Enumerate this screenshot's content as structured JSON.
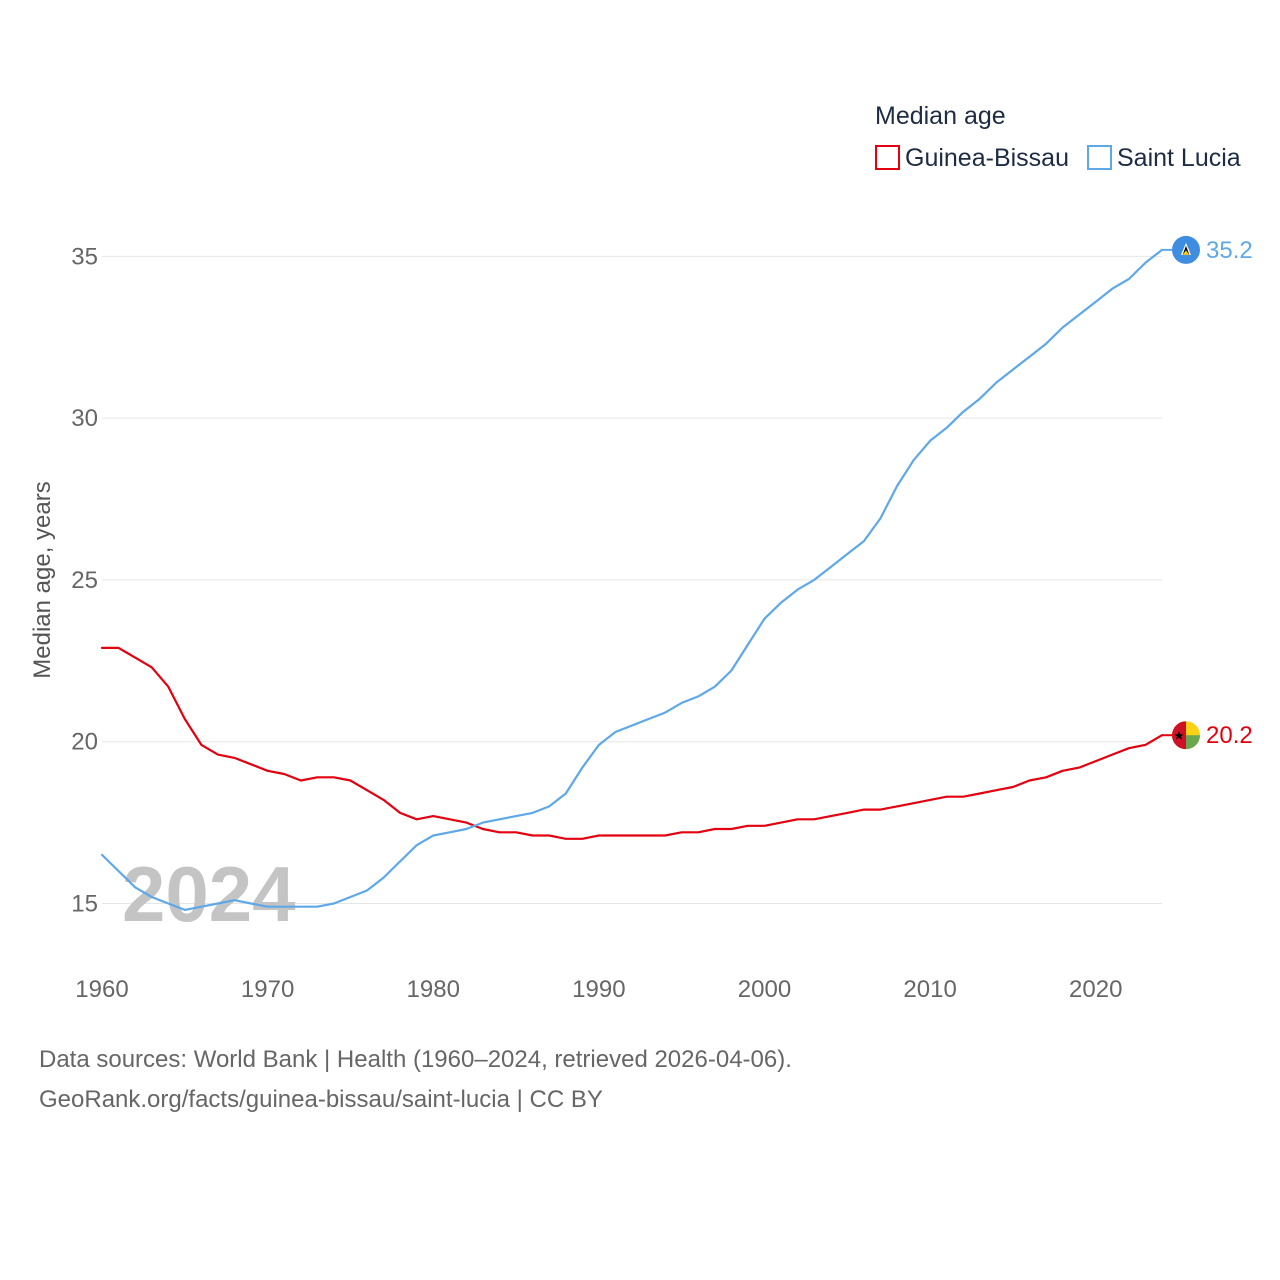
{
  "chart_data": {
    "type": "line",
    "legend_title": "Median age",
    "ylabel": "Median age, years",
    "xlabel": "",
    "xlim": [
      1960,
      2024
    ],
    "ylim": [
      13.5,
      36
    ],
    "x_ticks": [
      "1960",
      "1970",
      "1980",
      "1990",
      "2000",
      "2010",
      "2020"
    ],
    "y_ticks": [
      "15",
      "20",
      "25",
      "30",
      "35"
    ],
    "watermark_year": "2024",
    "x": [
      1960,
      1961,
      1962,
      1963,
      1964,
      1965,
      1966,
      1967,
      1968,
      1969,
      1970,
      1971,
      1972,
      1973,
      1974,
      1975,
      1976,
      1977,
      1978,
      1979,
      1980,
      1981,
      1982,
      1983,
      1984,
      1985,
      1986,
      1987,
      1988,
      1989,
      1990,
      1991,
      1992,
      1993,
      1994,
      1995,
      1996,
      1997,
      1998,
      1999,
      2000,
      2001,
      2002,
      2003,
      2004,
      2005,
      2006,
      2007,
      2008,
      2009,
      2010,
      2011,
      2012,
      2013,
      2014,
      2015,
      2016,
      2017,
      2018,
      2019,
      2020,
      2021,
      2022,
      2023,
      2024
    ],
    "series": [
      {
        "name": "Guinea-Bissau",
        "color": "#e3000f",
        "end_label": "20.2",
        "flag_icon": "guinea-bissau-flag-icon",
        "values": [
          22.9,
          22.9,
          22.6,
          22.3,
          21.7,
          20.7,
          19.9,
          19.6,
          19.5,
          19.3,
          19.1,
          19.0,
          18.8,
          18.9,
          18.9,
          18.8,
          18.5,
          18.2,
          17.8,
          17.6,
          17.7,
          17.6,
          17.5,
          17.3,
          17.2,
          17.2,
          17.1,
          17.1,
          17.0,
          17.0,
          17.1,
          17.1,
          17.1,
          17.1,
          17.1,
          17.2,
          17.2,
          17.3,
          17.3,
          17.4,
          17.4,
          17.5,
          17.6,
          17.6,
          17.7,
          17.8,
          17.9,
          17.9,
          18.0,
          18.1,
          18.2,
          18.3,
          18.3,
          18.4,
          18.5,
          18.6,
          18.8,
          18.9,
          19.1,
          19.2,
          19.4,
          19.6,
          19.8,
          19.9,
          20.2
        ]
      },
      {
        "name": "Saint Lucia",
        "color": "#5ea8e8",
        "end_label": "35.2",
        "flag_icon": "saint-lucia-flag-icon",
        "values": [
          16.5,
          16.0,
          15.5,
          15.2,
          15.0,
          14.8,
          14.9,
          15.0,
          15.1,
          15.0,
          14.9,
          14.9,
          14.9,
          14.9,
          15.0,
          15.2,
          15.4,
          15.8,
          16.3,
          16.8,
          17.1,
          17.2,
          17.3,
          17.5,
          17.6,
          17.7,
          17.8,
          18.0,
          18.4,
          19.2,
          19.9,
          20.3,
          20.5,
          20.7,
          20.9,
          21.2,
          21.4,
          21.7,
          22.2,
          23.0,
          23.8,
          24.3,
          24.7,
          25.0,
          25.4,
          25.8,
          26.2,
          26.9,
          27.9,
          28.7,
          29.3,
          29.7,
          30.2,
          30.6,
          31.1,
          31.5,
          31.9,
          32.3,
          32.8,
          33.2,
          33.6,
          34.0,
          34.3,
          34.8,
          35.2
        ]
      }
    ]
  },
  "footer": {
    "sources": "Data sources: World Bank | Health (1960–2024, retrieved 2026-04-06).",
    "attribution": "GeoRank.org/facts/guinea-bissau/saint-lucia | CC BY"
  }
}
